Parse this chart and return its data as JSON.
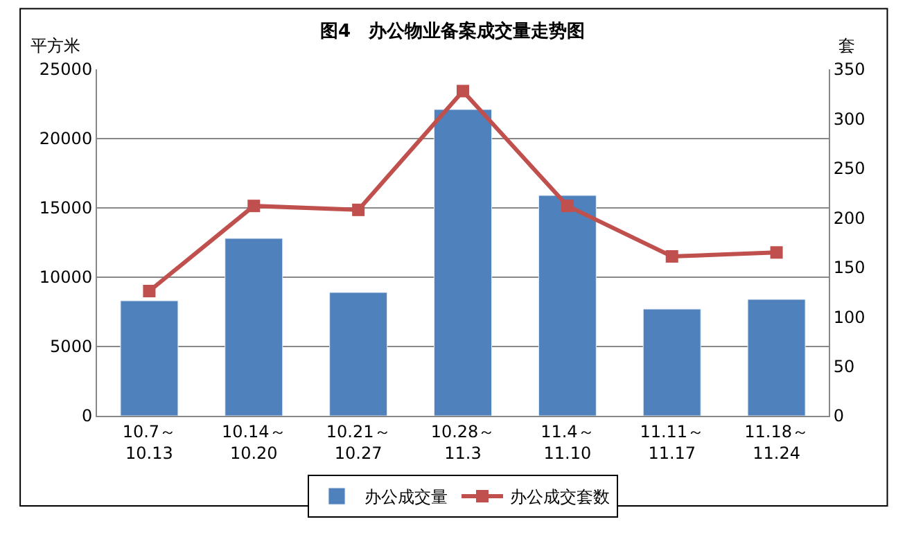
{
  "chart_data": {
    "type": "bar",
    "title": "图4　办公物业备案成交量走势图",
    "ylabel": "平方米",
    "y2label": "套",
    "categories": [
      "10.7～\n10.13",
      "10.14～\n10.20",
      "10.21～\n10.27",
      "10.28～\n11.3",
      "11.4～\n11.10",
      "11.11～\n11.17",
      "11.18～\n11.24"
    ],
    "series": [
      {
        "name": "办公成交量",
        "color": "#4f81bd",
        "values": [
          8300,
          12800,
          8900,
          22100,
          15900,
          7700,
          8400
        ]
      },
      {
        "name": "办公成交套数",
        "type": "line",
        "axis": "y2",
        "color": "#c0504d",
        "marker": "square",
        "values": [
          126,
          212,
          208,
          328,
          212,
          161,
          165
        ]
      }
    ],
    "ylim": [
      0,
      25000
    ],
    "yticks": [
      0,
      5000,
      10000,
      15000,
      20000,
      25000
    ],
    "y2lim": [
      0,
      350
    ],
    "y2ticks": [
      0,
      50,
      100,
      150,
      200,
      250,
      300,
      350
    ],
    "grid": "y",
    "legend": "bottom"
  }
}
